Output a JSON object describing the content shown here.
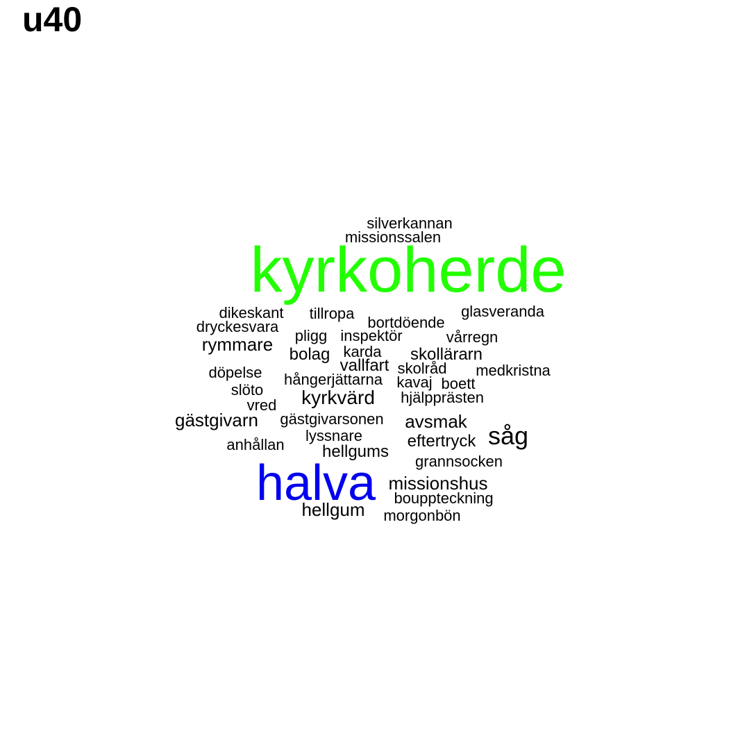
{
  "title": "u40",
  "colors": {
    "highlight_green": "#22ff00",
    "highlight_blue": "#0000ee",
    "default": "#000000"
  },
  "words": [
    {
      "text": "kyrkoherde",
      "color": "#22ff00"
    },
    {
      "text": "halva",
      "color": "#0000ee"
    },
    {
      "text": "silverkannan",
      "color": "#000000"
    },
    {
      "text": "missionssalen",
      "color": "#000000"
    },
    {
      "text": "dikeskant",
      "color": "#000000"
    },
    {
      "text": "tillropa",
      "color": "#000000"
    },
    {
      "text": "glasveranda",
      "color": "#000000"
    },
    {
      "text": "bortdöende",
      "color": "#000000"
    },
    {
      "text": "dryckesvara",
      "color": "#000000"
    },
    {
      "text": "pligg",
      "color": "#000000"
    },
    {
      "text": "inspektör",
      "color": "#000000"
    },
    {
      "text": "vårregn",
      "color": "#000000"
    },
    {
      "text": "rymmare",
      "color": "#000000"
    },
    {
      "text": "karda",
      "color": "#000000"
    },
    {
      "text": "bolag",
      "color": "#000000"
    },
    {
      "text": "skollärarn",
      "color": "#000000"
    },
    {
      "text": "vallfart",
      "color": "#000000"
    },
    {
      "text": "skolråd",
      "color": "#000000"
    },
    {
      "text": "medkristna",
      "color": "#000000"
    },
    {
      "text": "döpelse",
      "color": "#000000"
    },
    {
      "text": "hångerjättarna",
      "color": "#000000"
    },
    {
      "text": "kavaj",
      "color": "#000000"
    },
    {
      "text": "boett",
      "color": "#000000"
    },
    {
      "text": "slöto",
      "color": "#000000"
    },
    {
      "text": "kyrkvärd",
      "color": "#000000"
    },
    {
      "text": "hjälpprästen",
      "color": "#000000"
    },
    {
      "text": "vred",
      "color": "#000000"
    },
    {
      "text": "gästgivarn",
      "color": "#000000"
    },
    {
      "text": "gästgivarsonen",
      "color": "#000000"
    },
    {
      "text": "avsmak",
      "color": "#000000"
    },
    {
      "text": "såg",
      "color": "#000000"
    },
    {
      "text": "lyssnare",
      "color": "#000000"
    },
    {
      "text": "anhållan",
      "color": "#000000"
    },
    {
      "text": "eftertryck",
      "color": "#000000"
    },
    {
      "text": "hellgums",
      "color": "#000000"
    },
    {
      "text": "grannsocken",
      "color": "#000000"
    },
    {
      "text": "missionshus",
      "color": "#000000"
    },
    {
      "text": "bouppteckning",
      "color": "#000000"
    },
    {
      "text": "hellgum",
      "color": "#000000"
    },
    {
      "text": "morgonbön",
      "color": "#000000"
    }
  ]
}
